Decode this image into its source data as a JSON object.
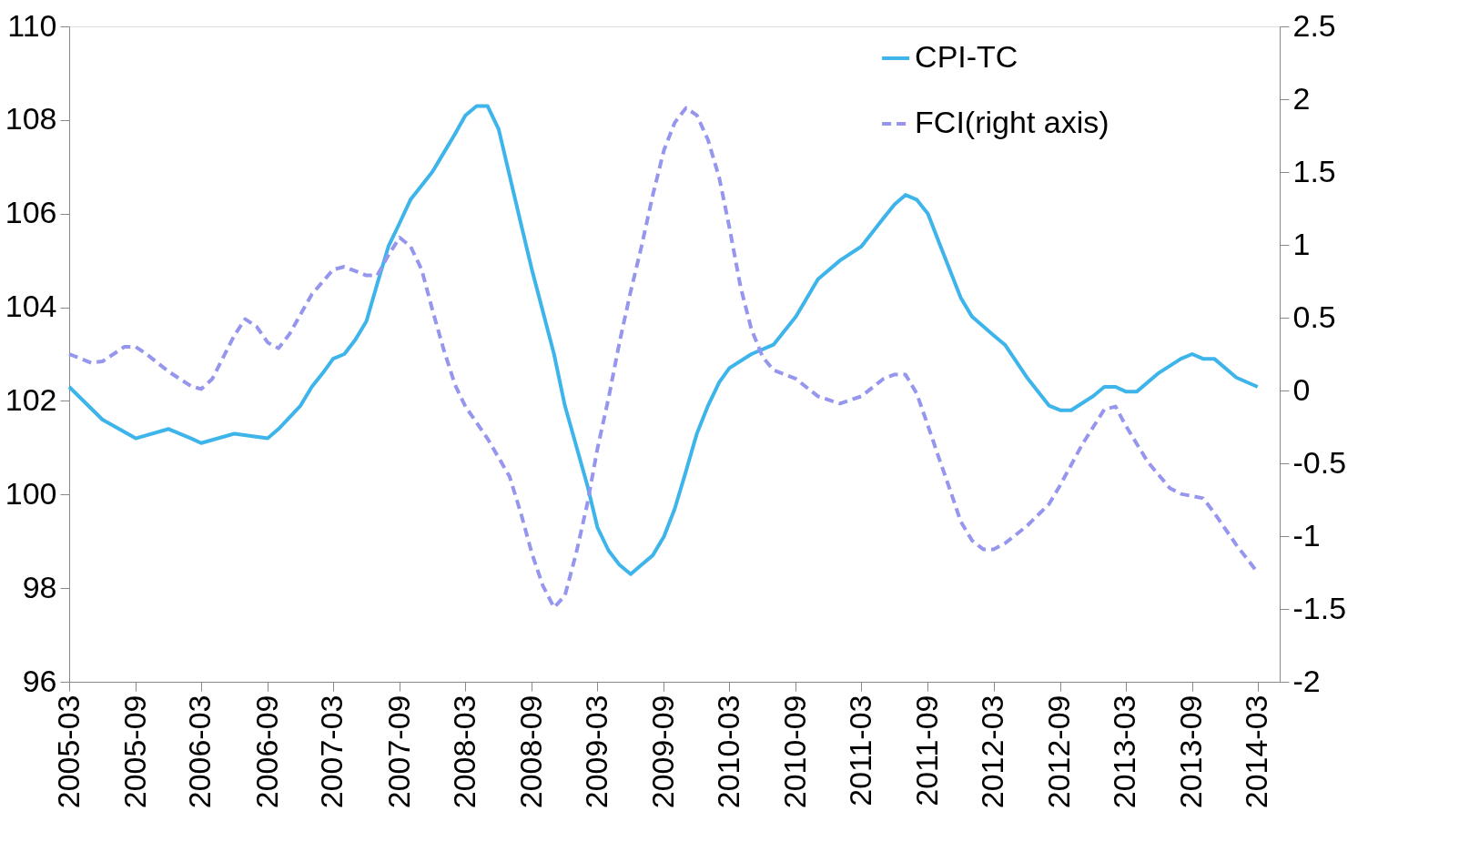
{
  "chart_data": {
    "type": "line",
    "xlim": [
      "2005-03",
      "2014-05"
    ],
    "xticks": [
      "2005-03",
      "2005-09",
      "2006-03",
      "2006-09",
      "2007-03",
      "2007-09",
      "2008-03",
      "2008-09",
      "2009-03",
      "2009-09",
      "2010-03",
      "2010-09",
      "2011-03",
      "2011-09",
      "2012-03",
      "2012-09",
      "2013-03",
      "2013-09",
      "2014-03"
    ],
    "ylim": [
      96,
      110
    ],
    "yticks": [
      96,
      98,
      100,
      102,
      104,
      106,
      108,
      110
    ],
    "y2lim": [
      -2,
      2.5
    ],
    "y2ticks": [
      -2,
      -1.5,
      -1,
      -0.5,
      0,
      0.5,
      1,
      1.5,
      2,
      2.5
    ],
    "legend": "top right",
    "grid": false,
    "marker": "none",
    "series": [
      {
        "name": "CPI-TC",
        "color": "#3db4ea",
        "line_style": "solid",
        "x": [
          "2005-03",
          "2005-06",
          "2005-09",
          "2005-12",
          "2006-02",
          "2006-03",
          "2006-06",
          "2006-09",
          "2006-10",
          "2006-12",
          "2007-01",
          "2007-02",
          "2007-03",
          "2007-04",
          "2007-05",
          "2007-06",
          "2007-07",
          "2007-08",
          "2007-09",
          "2007-10",
          "2007-11",
          "2007-12",
          "2008-01",
          "2008-02",
          "2008-03",
          "2008-04",
          "2008-05",
          "2008-06",
          "2008-08",
          "2008-09",
          "2008-11",
          "2008-12",
          "2009-02",
          "2009-03",
          "2009-04",
          "2009-05",
          "2009-06",
          "2009-07",
          "2009-08",
          "2009-09",
          "2009-10",
          "2009-11",
          "2009-12",
          "2010-01",
          "2010-02",
          "2010-03",
          "2010-05",
          "2010-07",
          "2010-08",
          "2010-09",
          "2010-11",
          "2011-01",
          "2011-03",
          "2011-05",
          "2011-06",
          "2011-07",
          "2011-08",
          "2011-09",
          "2011-10",
          "2011-12",
          "2012-01",
          "2012-03",
          "2012-04",
          "2012-06",
          "2012-08",
          "2012-09",
          "2012-10",
          "2012-12",
          "2013-01",
          "2013-02",
          "2013-03",
          "2013-04",
          "2013-06",
          "2013-08",
          "2013-09",
          "2013-10",
          "2013-11",
          "2014-01",
          "2014-03"
        ],
        "values": [
          102.3,
          101.6,
          101.2,
          101.4,
          101.2,
          101.1,
          101.3,
          101.2,
          101.4,
          101.9,
          102.3,
          102.6,
          102.9,
          103.0,
          103.3,
          103.7,
          104.5,
          105.3,
          105.8,
          106.3,
          106.6,
          106.9,
          107.3,
          107.7,
          108.1,
          108.3,
          108.3,
          107.8,
          105.8,
          104.8,
          103.0,
          101.9,
          100.2,
          99.3,
          98.8,
          98.5,
          98.3,
          98.5,
          98.7,
          99.1,
          99.7,
          100.5,
          101.3,
          101.9,
          102.4,
          102.7,
          103.0,
          103.2,
          103.5,
          103.8,
          104.6,
          105.0,
          105.3,
          105.9,
          106.2,
          106.4,
          106.3,
          106.0,
          105.4,
          104.2,
          103.8,
          103.4,
          103.2,
          102.5,
          101.9,
          101.8,
          101.8,
          102.1,
          102.3,
          102.3,
          102.2,
          102.2,
          102.6,
          102.9,
          103.0,
          102.9,
          102.9,
          102.5,
          102.3
        ]
      },
      {
        "name": "FCI(right axis)",
        "color": "#9696ee",
        "line_style": "dashed",
        "axis": "y2",
        "x": [
          "2005-03",
          "2005-05",
          "2005-06",
          "2005-08",
          "2005-09",
          "2005-10",
          "2005-12",
          "2006-02",
          "2006-03",
          "2006-04",
          "2006-06",
          "2006-07",
          "2006-08",
          "2006-09",
          "2006-10",
          "2006-11",
          "2007-01",
          "2007-03",
          "2007-04",
          "2007-06",
          "2007-07",
          "2007-08",
          "2007-09",
          "2007-10",
          "2007-11",
          "2007-12",
          "2008-01",
          "2008-02",
          "2008-03",
          "2008-05",
          "2008-07",
          "2008-08",
          "2008-09",
          "2008-10",
          "2008-11",
          "2008-12",
          "2009-01",
          "2009-02",
          "2009-03",
          "2009-04",
          "2009-05",
          "2009-06",
          "2009-07",
          "2009-08",
          "2009-09",
          "2009-10",
          "2009-11",
          "2009-12",
          "2010-01",
          "2010-02",
          "2010-03",
          "2010-04",
          "2010-05",
          "2010-06",
          "2010-07",
          "2010-09",
          "2010-11",
          "2011-01",
          "2011-03",
          "2011-05",
          "2011-06",
          "2011-07",
          "2011-08",
          "2011-09",
          "2011-10",
          "2011-11",
          "2011-12",
          "2012-01",
          "2012-02",
          "2012-03",
          "2012-04",
          "2012-06",
          "2012-08",
          "2012-09",
          "2012-11",
          "2013-01",
          "2013-02",
          "2013-03",
          "2013-05",
          "2013-07",
          "2013-08",
          "2013-10",
          "2013-11",
          "2014-01",
          "2014-03"
        ],
        "values": [
          0.25,
          0.19,
          0.2,
          0.3,
          0.3,
          0.25,
          0.13,
          0.03,
          0.01,
          0.08,
          0.38,
          0.49,
          0.44,
          0.33,
          0.29,
          0.39,
          0.66,
          0.83,
          0.85,
          0.79,
          0.79,
          0.93,
          1.05,
          0.99,
          0.83,
          0.55,
          0.28,
          0.04,
          -0.11,
          -0.33,
          -0.59,
          -0.84,
          -1.12,
          -1.34,
          -1.49,
          -1.41,
          -1.12,
          -0.78,
          -0.4,
          -0.05,
          0.33,
          0.68,
          0.99,
          1.34,
          1.65,
          1.84,
          1.94,
          1.89,
          1.72,
          1.46,
          1.12,
          0.71,
          0.42,
          0.23,
          0.14,
          0.08,
          -0.04,
          -0.09,
          -0.04,
          0.08,
          0.11,
          0.11,
          -0.02,
          -0.24,
          -0.46,
          -0.68,
          -0.9,
          -1.03,
          -1.09,
          -1.09,
          -1.05,
          -0.93,
          -0.78,
          -0.65,
          -0.37,
          -0.13,
          -0.11,
          -0.24,
          -0.49,
          -0.67,
          -0.71,
          -0.74,
          -0.84,
          -1.06,
          -1.25
        ]
      }
    ]
  }
}
